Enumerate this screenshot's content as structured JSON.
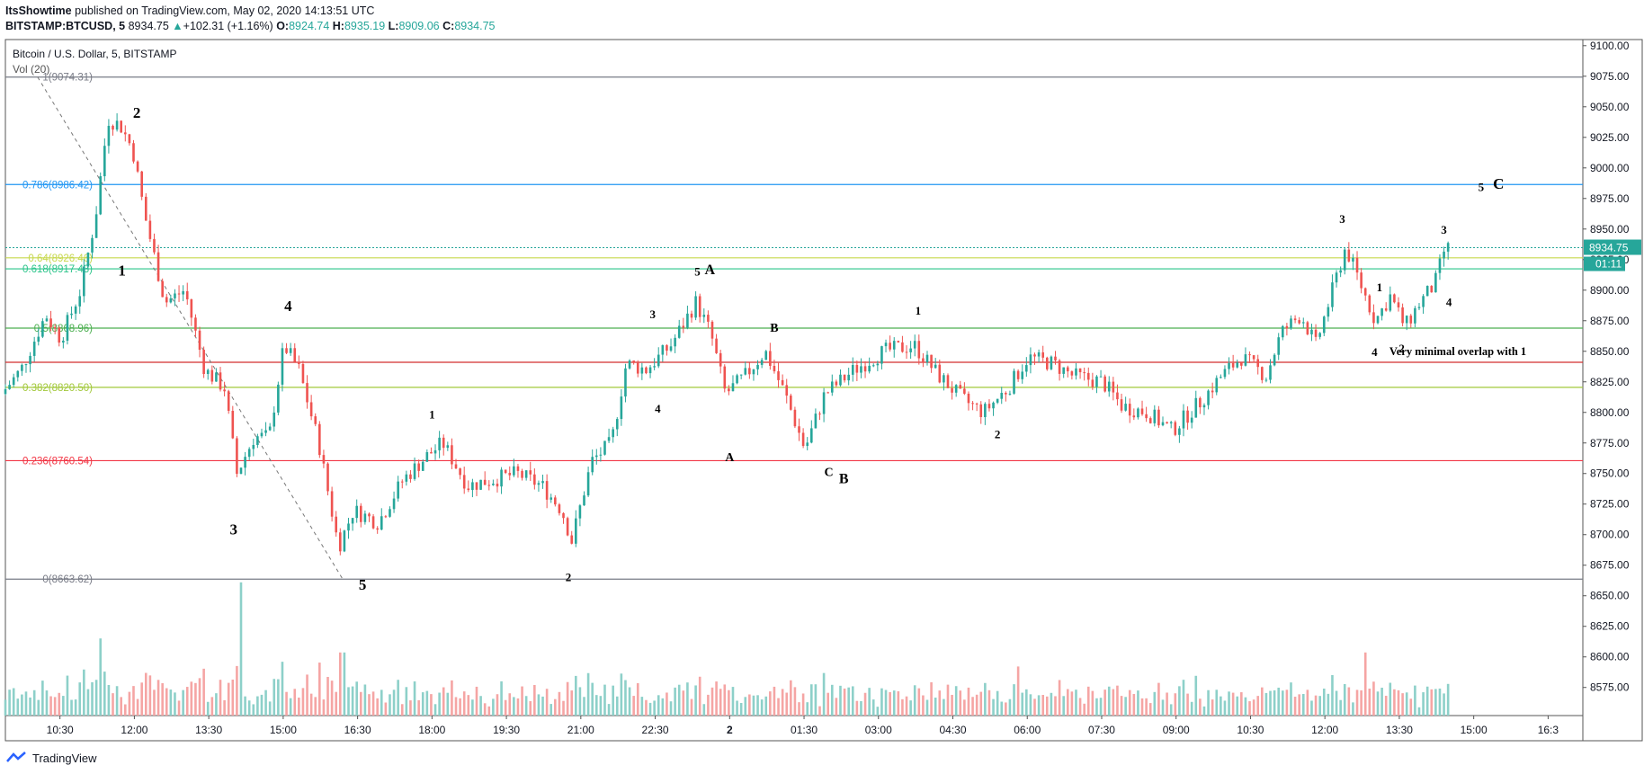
{
  "header": {
    "author": "ItsShowtime",
    "published": "published on TradingView.com, May 02, 2020 14:13:51 UTC",
    "symbol": "BITSTAMP:BTCUSD, 5",
    "last": "8934.75",
    "change": "+102.31 (+1.16%)",
    "o_label": "O:",
    "o": "8924.74",
    "h_label": "H:",
    "h": "8935.19",
    "l_label": "L:",
    "l": "8909.06",
    "c_label": "C:",
    "c": "8934.75"
  },
  "legend": {
    "title": "Bitcoin / U.S. Dollar, 5, BITSTAMP",
    "volume": "Vol (20)"
  },
  "price_badge": {
    "price": "8934.75",
    "countdown": "01:11",
    "color": "#26a69a"
  },
  "footer": {
    "brand": "TradingView"
  },
  "colors": {
    "up": "#26a69a",
    "down": "#ef5350",
    "vol_up": "#8dd0c9",
    "vol_down": "#f5a5a4"
  },
  "chart_data": {
    "type": "candlestick",
    "title": "Bitcoin / U.S. Dollar, 5, BITSTAMP",
    "y_axis": {
      "side": "right",
      "ylim": [
        8552,
        9105
      ],
      "ticks": [
        9100,
        9075,
        9050,
        9025,
        9000,
        8975,
        8950,
        8925,
        8900,
        8875,
        8850,
        8825,
        8800,
        8775,
        8750,
        8725,
        8700,
        8675,
        8650,
        8625,
        8600,
        8575
      ],
      "tick_labels": [
        "9100.00",
        "9075.00",
        "9050.00",
        "9025.00",
        "9000.00",
        "8975.00",
        "8950.00",
        "8925.00",
        "8900.00",
        "8875.00",
        "8850.00",
        "8825.00",
        "8800.00",
        "8775.00",
        "8750.00",
        "8725.00",
        "8700.00",
        "8675.00",
        "8650.00",
        "8625.00",
        "8600.00",
        "8575.00"
      ]
    },
    "x_axis": {
      "tick_labels": [
        "10:30",
        "12:00",
        "13:30",
        "15:00",
        "16:30",
        "18:00",
        "19:30",
        "21:00",
        "22:30",
        "2",
        "01:30",
        "03:00",
        "04:30",
        "06:00",
        "07:30",
        "09:00",
        "10:30",
        "12:00",
        "13:30",
        "15:00",
        "16:3"
      ],
      "tick_hours": [
        10.5,
        12,
        13.5,
        15,
        16.5,
        18,
        19.5,
        21,
        22.5,
        24,
        25.5,
        27,
        28.5,
        30,
        31.5,
        33,
        34.5,
        36,
        37.5,
        39,
        40.5
      ],
      "range_hours": [
        9.4,
        41.2
      ]
    },
    "fib_levels": [
      {
        "label": "1(9074.31)",
        "value": 9074.31,
        "color": "#787b86"
      },
      {
        "label": "0.786(8986.42)",
        "value": 8986.42,
        "color": "#2196f3"
      },
      {
        "label": "0.64(8926.46)",
        "value": 8926.46,
        "color": "#c7d84d"
      },
      {
        "label": "0.618(8917.43)",
        "value": 8917.43,
        "color": "#2bc48a"
      },
      {
        "label": "0.5(8868.96)",
        "value": 8868.96,
        "color": "#4caf50"
      },
      {
        "label": "0.382(8820.50)",
        "value": 8820.5,
        "color": "#a2c83a"
      },
      {
        "label": "0.236(8760.54)",
        "value": 8760.54,
        "color": "#f23645"
      },
      {
        "label": "0(8663.62)",
        "value": 8663.62,
        "color": "#787b86"
      }
    ],
    "horizontal_lines": [
      {
        "value": 8841,
        "color": "#d32f2f"
      }
    ],
    "last_price_line": 8934.75,
    "trend_line": [
      {
        "t": 10.05,
        "p": 9074.31
      },
      {
        "t": 16.2,
        "p": 8663.62
      }
    ],
    "anchors": [
      {
        "t": 9.4,
        "p": 8815
      },
      {
        "t": 9.8,
        "p": 8835
      },
      {
        "t": 10.3,
        "p": 8880
      },
      {
        "t": 10.6,
        "p": 8860
      },
      {
        "t": 11.0,
        "p": 8900
      },
      {
        "t": 11.3,
        "p": 8960
      },
      {
        "t": 11.55,
        "p": 9040
      },
      {
        "t": 11.8,
        "p": 9035
      },
      {
        "t": 12.05,
        "p": 9015
      },
      {
        "t": 12.3,
        "p": 8960
      },
      {
        "t": 12.7,
        "p": 8890
      },
      {
        "t": 13.1,
        "p": 8900
      },
      {
        "t": 13.5,
        "p": 8835
      },
      {
        "t": 13.9,
        "p": 8820
      },
      {
        "t": 14.15,
        "p": 8750
      },
      {
        "t": 14.5,
        "p": 8780
      },
      {
        "t": 14.8,
        "p": 8780
      },
      {
        "t": 15.1,
        "p": 8855
      },
      {
        "t": 15.4,
        "p": 8835
      },
      {
        "t": 15.8,
        "p": 8775
      },
      {
        "t": 16.2,
        "p": 8690
      },
      {
        "t": 16.5,
        "p": 8720
      },
      {
        "t": 17.0,
        "p": 8710
      },
      {
        "t": 17.5,
        "p": 8745
      },
      {
        "t": 18.0,
        "p": 8765
      },
      {
        "t": 18.3,
        "p": 8775
      },
      {
        "t": 18.8,
        "p": 8740
      },
      {
        "t": 19.3,
        "p": 8745
      },
      {
        "t": 19.8,
        "p": 8750
      },
      {
        "t": 20.3,
        "p": 8740
      },
      {
        "t": 20.7,
        "p": 8720
      },
      {
        "t": 20.9,
        "p": 8695
      },
      {
        "t": 21.3,
        "p": 8760
      },
      {
        "t": 21.7,
        "p": 8775
      },
      {
        "t": 22.0,
        "p": 8840
      },
      {
        "t": 22.4,
        "p": 8835
      },
      {
        "t": 22.9,
        "p": 8855
      },
      {
        "t": 23.4,
        "p": 8890
      },
      {
        "t": 23.7,
        "p": 8865
      },
      {
        "t": 24.0,
        "p": 8815
      },
      {
        "t": 24.4,
        "p": 8830
      },
      {
        "t": 24.8,
        "p": 8850
      },
      {
        "t": 25.2,
        "p": 8815
      },
      {
        "t": 25.6,
        "p": 8770
      },
      {
        "t": 26.0,
        "p": 8815
      },
      {
        "t": 26.6,
        "p": 8835
      },
      {
        "t": 27.2,
        "p": 8850
      },
      {
        "t": 27.8,
        "p": 8855
      },
      {
        "t": 28.3,
        "p": 8830
      },
      {
        "t": 28.8,
        "p": 8810
      },
      {
        "t": 29.2,
        "p": 8800
      },
      {
        "t": 29.7,
        "p": 8820
      },
      {
        "t": 30.1,
        "p": 8845
      },
      {
        "t": 30.6,
        "p": 8840
      },
      {
        "t": 31.0,
        "p": 8830
      },
      {
        "t": 31.6,
        "p": 8825
      },
      {
        "t": 32.0,
        "p": 8805
      },
      {
        "t": 32.5,
        "p": 8800
      },
      {
        "t": 33.0,
        "p": 8785
      },
      {
        "t": 33.6,
        "p": 8810
      },
      {
        "t": 34.0,
        "p": 8830
      },
      {
        "t": 34.4,
        "p": 8845
      },
      {
        "t": 34.9,
        "p": 8830
      },
      {
        "t": 35.2,
        "p": 8865
      },
      {
        "t": 35.6,
        "p": 8880
      },
      {
        "t": 35.9,
        "p": 8855
      },
      {
        "t": 36.2,
        "p": 8895
      },
      {
        "t": 36.5,
        "p": 8935
      },
      {
        "t": 36.8,
        "p": 8905
      },
      {
        "t": 37.1,
        "p": 8875
      },
      {
        "t": 37.4,
        "p": 8895
      },
      {
        "t": 37.7,
        "p": 8870
      },
      {
        "t": 38.0,
        "p": 8890
      },
      {
        "t": 38.3,
        "p": 8905
      },
      {
        "t": 38.5,
        "p": 8934
      }
    ],
    "volume_spikes": [
      {
        "t": 11.3,
        "v": 0.55
      },
      {
        "t": 14.15,
        "v": 0.95
      },
      {
        "t": 16.2,
        "v": 0.45
      },
      {
        "t": 29.8,
        "v": 0.35
      },
      {
        "t": 36.8,
        "v": 0.45
      }
    ],
    "wave_labels": [
      {
        "text": "1",
        "t": 11.75,
        "p": 8912,
        "size": 17
      },
      {
        "text": "2",
        "t": 12.05,
        "p": 9041,
        "size": 17
      },
      {
        "text": "3",
        "t": 14.0,
        "p": 8700,
        "size": 17
      },
      {
        "text": "4",
        "t": 15.1,
        "p": 8883,
        "size": 17
      },
      {
        "text": "5",
        "t": 16.6,
        "p": 8655,
        "size": 17
      },
      {
        "text": "1",
        "t": 18.0,
        "p": 8795,
        "size": 13
      },
      {
        "text": "2",
        "t": 20.75,
        "p": 8662,
        "size": 13
      },
      {
        "text": "3",
        "t": 22.45,
        "p": 8877,
        "size": 13
      },
      {
        "text": "4",
        "t": 22.55,
        "p": 8800,
        "size": 13
      },
      {
        "text": "5",
        "t": 23.35,
        "p": 8912,
        "size": 13
      },
      {
        "text": "A",
        "t": 23.6,
        "p": 8913,
        "size": 16
      },
      {
        "text": "A",
        "t": 24.0,
        "p": 8760,
        "size": 14
      },
      {
        "text": "B",
        "t": 24.9,
        "p": 8866,
        "size": 14
      },
      {
        "text": "C",
        "t": 26.0,
        "p": 8748,
        "size": 14
      },
      {
        "text": "B",
        "t": 26.3,
        "p": 8742,
        "size": 16
      },
      {
        "text": "1",
        "t": 27.8,
        "p": 8880,
        "size": 13
      },
      {
        "text": "2",
        "t": 29.4,
        "p": 8779,
        "size": 13
      },
      {
        "text": "3",
        "t": 36.35,
        "p": 8955,
        "size": 13
      },
      {
        "text": "1",
        "t": 37.1,
        "p": 8899,
        "size": 13
      },
      {
        "text": "4",
        "t": 37.0,
        "p": 8846,
        "size": 13
      },
      {
        "text": "2",
        "t": 37.55,
        "p": 8849,
        "size": 13
      },
      {
        "text": "3",
        "t": 38.4,
        "p": 8946,
        "size": 13
      },
      {
        "text": "4",
        "t": 38.5,
        "p": 8887,
        "size": 13
      },
      {
        "text": "5",
        "t": 39.15,
        "p": 8981,
        "size": 13
      },
      {
        "text": "C",
        "t": 39.5,
        "p": 8983,
        "size": 17
      }
    ],
    "annotation": {
      "text": "Very minimal overlap with 1",
      "t": 37.3,
      "p": 8847
    }
  }
}
